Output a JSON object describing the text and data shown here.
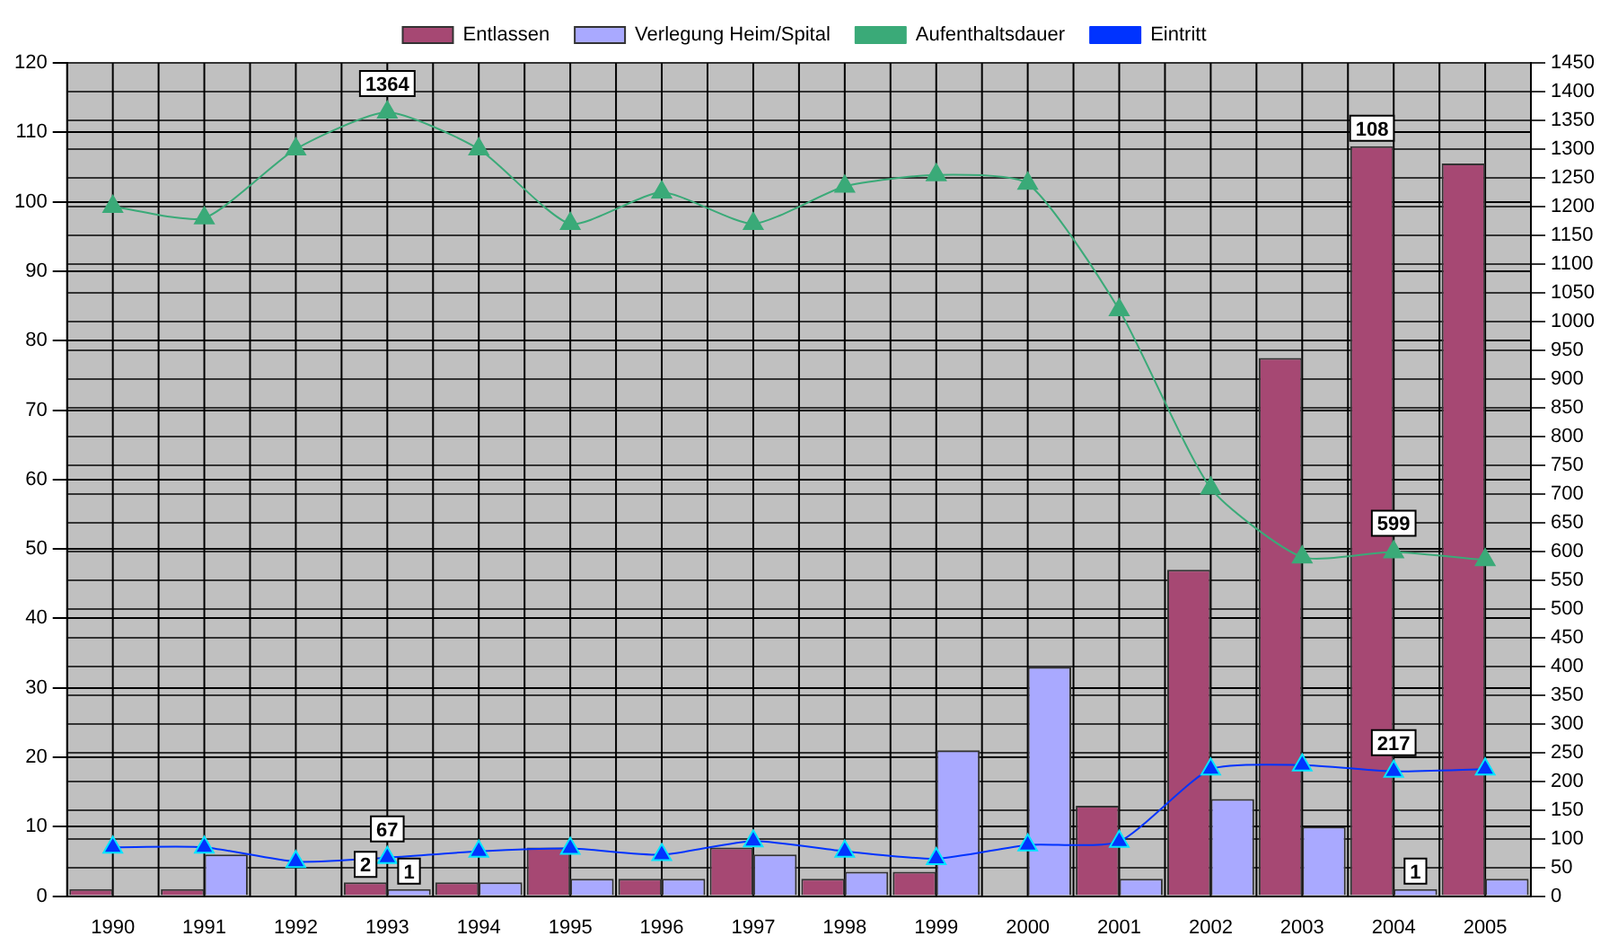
{
  "chart_data": {
    "type": "bar",
    "categories": [
      "1990",
      "1991",
      "1992",
      "1993",
      "1994",
      "1995",
      "1996",
      "1997",
      "1998",
      "1999",
      "2000",
      "2001",
      "2002",
      "2003",
      "2004",
      "2005"
    ],
    "series": [
      {
        "name": "Entlassen",
        "color": "#a64873",
        "values": [
          1,
          1,
          0,
          2,
          2,
          7,
          2.5,
          7,
          2.5,
          3.5,
          0,
          13,
          47,
          77.5,
          108,
          105.5
        ],
        "value_labels": [
          null,
          null,
          null,
          "2",
          null,
          null,
          null,
          null,
          null,
          null,
          null,
          null,
          null,
          null,
          "108",
          null
        ]
      },
      {
        "name": "Verlegung Heim/Spital",
        "color": "#a9a9ff",
        "values": [
          0,
          6,
          0,
          1,
          2,
          2.5,
          2.5,
          6,
          3.5,
          21,
          33,
          2.5,
          14,
          10,
          1,
          2.5
        ],
        "value_labels": [
          null,
          null,
          null,
          "1",
          null,
          null,
          null,
          null,
          null,
          null,
          null,
          null,
          null,
          null,
          "1",
          null
        ]
      },
      {
        "name": "Aufenthaltsdauer",
        "type": "line",
        "axis": "y2",
        "color": "#3aaa78",
        "values": [
          1200,
          1180,
          1300,
          1364,
          1300,
          1170,
          1225,
          1170,
          1235,
          1255,
          1240,
          1020,
          710,
          590,
          599,
          585
        ],
        "value_labels": [
          null,
          null,
          null,
          "1364",
          null,
          null,
          null,
          null,
          null,
          null,
          null,
          null,
          null,
          null,
          "599",
          null
        ]
      },
      {
        "name": "Eintritt",
        "type": "line",
        "axis": "y2",
        "color": "#0033ff",
        "values": [
          85,
          85,
          60,
          67,
          78,
          83,
          72,
          96,
          78,
          65,
          89,
          95,
          221,
          228,
          217,
          221
        ],
        "value_labels": [
          null,
          null,
          null,
          "67",
          null,
          null,
          null,
          null,
          null,
          null,
          null,
          null,
          null,
          null,
          "217",
          null
        ]
      }
    ],
    "ylim": [
      0,
      120
    ],
    "yticks": [
      0,
      10,
      20,
      30,
      40,
      50,
      60,
      70,
      80,
      90,
      100,
      110,
      120
    ],
    "y2lim": [
      0,
      1450
    ],
    "y2ticks": [
      0,
      50,
      100,
      150,
      200,
      250,
      300,
      350,
      400,
      450,
      500,
      550,
      600,
      650,
      700,
      750,
      800,
      850,
      900,
      950,
      1000,
      1050,
      1100,
      1150,
      1200,
      1250,
      1300,
      1350,
      1400,
      1450
    ],
    "grid": true,
    "legend": "top",
    "marker": "triangle",
    "line_style": "solid"
  }
}
